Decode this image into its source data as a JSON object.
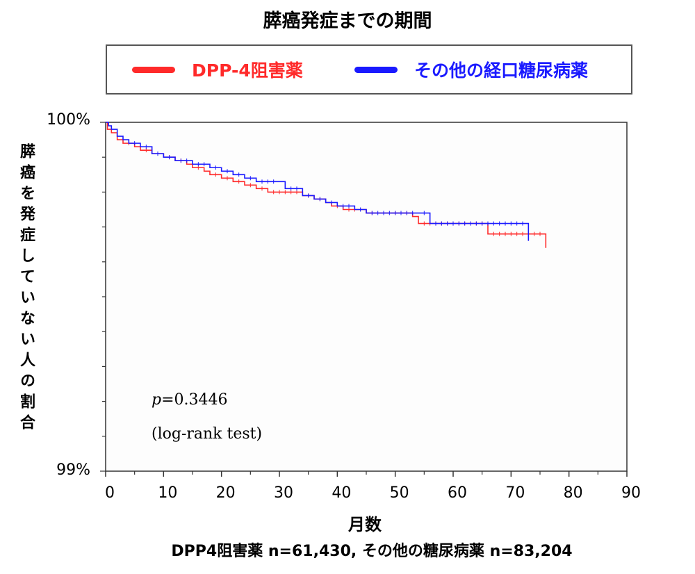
{
  "chart_data": {
    "type": "line",
    "title": "膵癌発症までの期間",
    "xlabel": "月数",
    "ylabel": "膵癌を発症していない人の割合",
    "xlim": [
      0,
      90
    ],
    "ylim": [
      99,
      100
    ],
    "x_ticks": [
      "0",
      "10",
      "20",
      "30",
      "40",
      "50",
      "60",
      "70",
      "80",
      "90"
    ],
    "y_ticks": [
      {
        "value": 100,
        "label": "100%"
      },
      {
        "value": 99,
        "label": "99%"
      }
    ],
    "grid": false,
    "legend_position": "top",
    "series": [
      {
        "name": "DPP-4阻害薬",
        "color": "#ff2a2a",
        "points": [
          [
            0,
            100
          ],
          [
            0.3,
            99.98
          ],
          [
            1,
            99.97
          ],
          [
            2,
            99.95
          ],
          [
            3,
            99.94
          ],
          [
            5,
            99.93
          ],
          [
            6,
            99.92
          ],
          [
            8,
            99.91
          ],
          [
            10,
            99.9
          ],
          [
            12,
            99.89
          ],
          [
            14,
            99.88
          ],
          [
            15,
            99.87
          ],
          [
            17,
            99.86
          ],
          [
            18,
            99.85
          ],
          [
            20,
            99.84
          ],
          [
            22,
            99.83
          ],
          [
            24,
            99.82
          ],
          [
            26,
            99.81
          ],
          [
            28,
            99.8
          ],
          [
            34,
            99.79
          ],
          [
            36,
            99.78
          ],
          [
            38,
            99.77
          ],
          [
            39,
            99.76
          ],
          [
            41,
            99.75
          ],
          [
            44,
            99.75
          ],
          [
            45,
            99.74
          ],
          [
            47,
            99.74
          ],
          [
            49,
            99.74
          ],
          [
            53,
            99.73
          ],
          [
            54,
            99.71
          ],
          [
            66,
            99.68
          ],
          [
            76,
            99.68
          ],
          [
            76,
            99.64
          ]
        ]
      },
      {
        "name": "その他の経口糖尿病薬",
        "color": "#1a1aff",
        "points": [
          [
            0,
            100
          ],
          [
            0.5,
            99.99
          ],
          [
            1,
            99.98
          ],
          [
            2,
            99.96
          ],
          [
            3,
            99.95
          ],
          [
            4,
            99.94
          ],
          [
            6,
            99.93
          ],
          [
            8,
            99.91
          ],
          [
            10,
            99.9
          ],
          [
            12,
            99.89
          ],
          [
            15,
            99.88
          ],
          [
            18,
            99.87
          ],
          [
            20,
            99.86
          ],
          [
            22,
            99.85
          ],
          [
            24,
            99.84
          ],
          [
            26,
            99.83
          ],
          [
            30,
            99.83
          ],
          [
            31,
            99.81
          ],
          [
            34,
            99.79
          ],
          [
            36,
            99.78
          ],
          [
            38,
            99.77
          ],
          [
            40,
            99.76
          ],
          [
            43,
            99.75
          ],
          [
            45,
            99.74
          ],
          [
            54,
            99.74
          ],
          [
            56,
            99.71
          ],
          [
            73,
            99.71
          ],
          [
            73,
            99.66
          ]
        ]
      }
    ],
    "annotations": [
      "p=0.3446",
      "(log-rank test)"
    ]
  },
  "footnote": "DPP4阻害薬 n=61,430, その他の糖尿病薬 n=83,204"
}
